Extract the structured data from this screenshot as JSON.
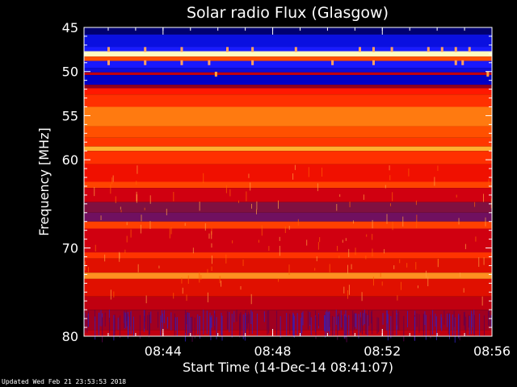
{
  "chart_data": {
    "type": "heatmap",
    "title": "Solar radio Flux (Glasgow)",
    "xlabel": "Start Time (14-Dec-14 08:41:07)",
    "ylabel": "Frequency [MHz]",
    "x_unit": "time",
    "xlim": [
      "08:41:07",
      "08:56:00"
    ],
    "ylim": [
      45,
      80
    ],
    "y_direction": "top-to-bottom ascending",
    "x_ticks": [
      "08:44",
      "08:48",
      "08:52",
      "08:56"
    ],
    "y_ticks": [
      45,
      50,
      55,
      60,
      70,
      80
    ],
    "colormap": [
      "#000080",
      "#0000ff",
      "#c00000",
      "#ff2000",
      "#ff6000",
      "#ffa000",
      "#ffff80"
    ],
    "frequency_bands": [
      {
        "from": 45.0,
        "to": 45.8,
        "color": "#000070"
      },
      {
        "from": 45.8,
        "to": 47.2,
        "color": "#0a10e0"
      },
      {
        "from": 47.2,
        "to": 47.7,
        "color": "#1a1cff"
      },
      {
        "from": 47.7,
        "to": 48.3,
        "color": "#fffbc0"
      },
      {
        "from": 48.3,
        "to": 48.8,
        "color": "#ff5000"
      },
      {
        "from": 48.8,
        "to": 49.6,
        "color": "#1818ff"
      },
      {
        "from": 49.6,
        "to": 50.1,
        "color": "#0c0cd8"
      },
      {
        "from": 50.1,
        "to": 50.4,
        "color": "#c00010"
      },
      {
        "from": 50.4,
        "to": 51.5,
        "color": "#0000c8"
      },
      {
        "from": 51.5,
        "to": 51.9,
        "color": "#900020"
      },
      {
        "from": 51.9,
        "to": 52.6,
        "color": "#ff1800"
      },
      {
        "from": 52.6,
        "to": 54.0,
        "color": "#ff3000"
      },
      {
        "from": 54.0,
        "to": 56.2,
        "color": "#ff7a10"
      },
      {
        "from": 56.2,
        "to": 57.5,
        "color": "#ff5000"
      },
      {
        "from": 57.5,
        "to": 58.5,
        "color": "#ff3800"
      },
      {
        "from": 58.5,
        "to": 59.0,
        "color": "#ffb030"
      },
      {
        "from": 59.0,
        "to": 60.5,
        "color": "#ff3000"
      },
      {
        "from": 60.5,
        "to": 62.5,
        "color": "#f01000"
      },
      {
        "from": 62.5,
        "to": 63.2,
        "color": "#ff4400"
      },
      {
        "from": 63.2,
        "to": 64.8,
        "color": "#d00010"
      },
      {
        "from": 64.8,
        "to": 66.0,
        "color": "#801040"
      },
      {
        "from": 66.0,
        "to": 67.0,
        "color": "#701060"
      },
      {
        "from": 67.0,
        "to": 67.8,
        "color": "#ff4000"
      },
      {
        "from": 67.8,
        "to": 70.5,
        "color": "#d00010"
      },
      {
        "from": 70.5,
        "to": 71.2,
        "color": "#ff3400"
      },
      {
        "from": 71.2,
        "to": 72.8,
        "color": "#e01000"
      },
      {
        "from": 72.8,
        "to": 73.5,
        "color": "#ff9020"
      },
      {
        "from": 73.5,
        "to": 75.5,
        "color": "#e01000"
      },
      {
        "from": 75.5,
        "to": 77.0,
        "color": "#c00010"
      },
      {
        "from": 77.0,
        "to": 79.3,
        "color": "#a00020"
      },
      {
        "from": 79.3,
        "to": 80.0,
        "color": "#c00010"
      }
    ],
    "bursts": [
      {
        "freq": 47.5,
        "color": "#ffa060",
        "times": [
          "08:42:00",
          "08:43:20",
          "08:44:40",
          "08:46:20",
          "08:47:15",
          "08:48:50",
          "08:51:10",
          "08:51:40",
          "08:52:20",
          "08:53:40",
          "08:54:10",
          "08:54:40",
          "08:55:10"
        ]
      },
      {
        "freq": 49.0,
        "color": "#ffa060",
        "times": [
          "08:42:00",
          "08:43:20",
          "08:44:40",
          "08:45:40",
          "08:47:15",
          "08:50:10",
          "08:51:40",
          "08:54:40",
          "08:54:55"
        ]
      },
      {
        "freq": 50.3,
        "color": "#ffa040",
        "times": [
          "08:45:55",
          "08:55:50"
        ]
      }
    ]
  },
  "footer": {
    "updated_text": "Updated Wed Feb 21 23:53:53 2018"
  }
}
